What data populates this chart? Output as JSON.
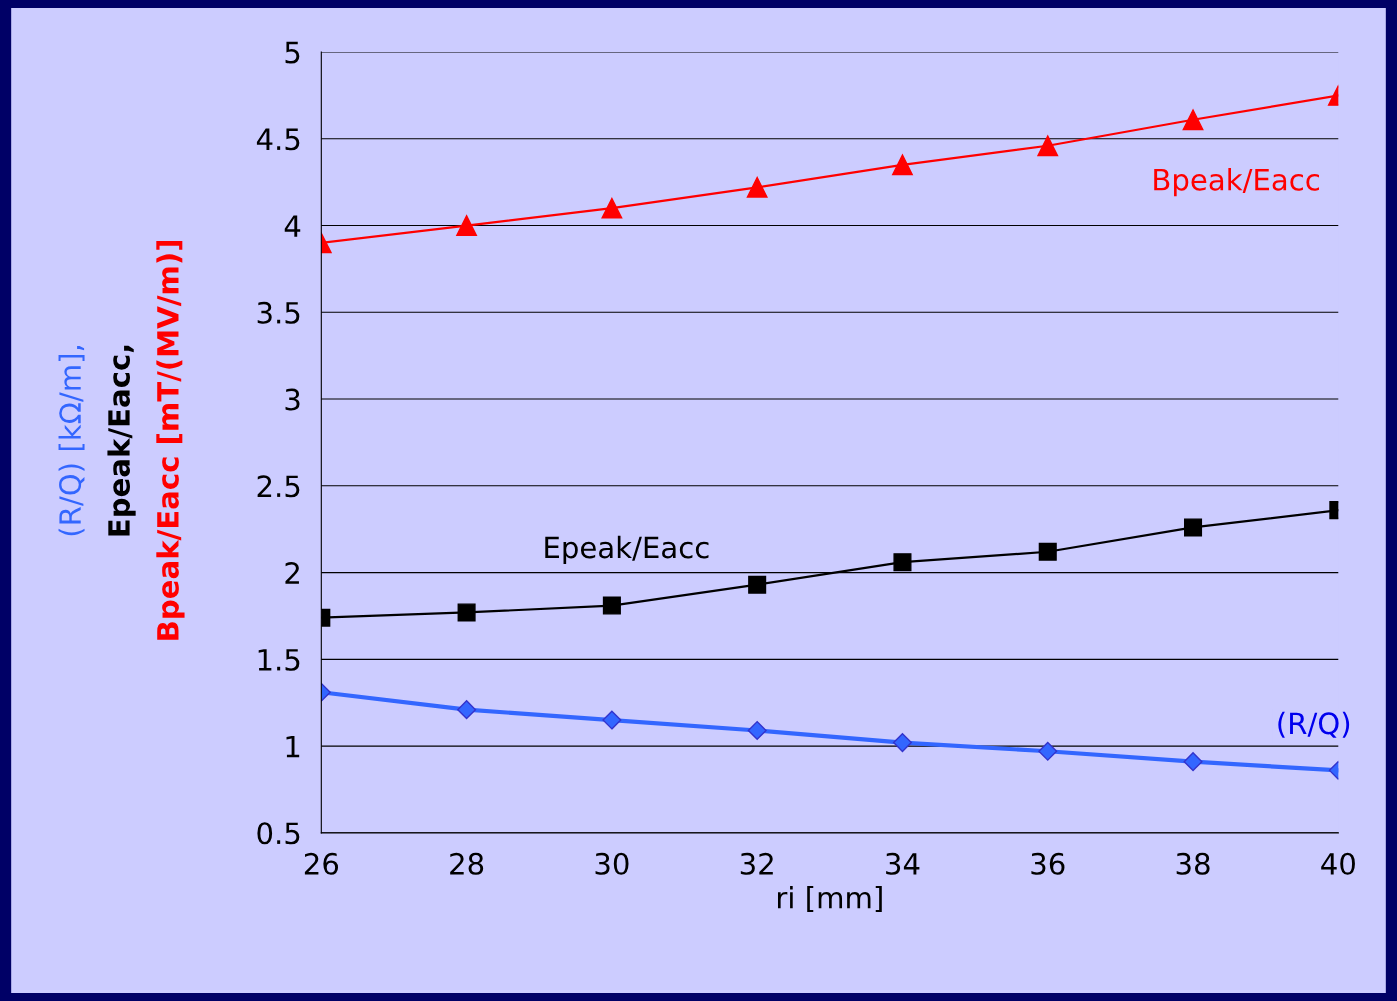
{
  "chart_data": {
    "type": "line",
    "xlabel": "ri [mm]",
    "ylabel": "(R/Q) [kΩ/m],\nEpeak/Eacc,\nBpeak/Eacc [mT/(MV/m)]",
    "x": [
      26,
      28,
      30,
      32,
      34,
      36,
      38,
      40
    ],
    "series": [
      {
        "name": "Bpeak/Eacc",
        "color": "#ff0000",
        "marker": "triangle",
        "values": [
          3.9,
          4.0,
          4.1,
          4.22,
          4.35,
          4.46,
          4.61,
          4.75
        ]
      },
      {
        "name": "Epeak/Eacc",
        "color": "#000000",
        "marker": "square",
        "values": [
          1.74,
          1.77,
          1.81,
          1.93,
          2.06,
          2.12,
          2.26,
          2.36
        ]
      },
      {
        "name": "(R/Q)",
        "color": "#3366ff",
        "marker": "diamond",
        "values": [
          1.31,
          1.21,
          1.15,
          1.09,
          1.02,
          0.97,
          0.91,
          0.86
        ]
      }
    ],
    "xlim": [
      26,
      40
    ],
    "xticks": [
      26,
      28,
      30,
      32,
      34,
      36,
      38,
      40
    ],
    "ylim": [
      0.5,
      5
    ],
    "yticks": [
      0.5,
      1,
      1.5,
      2,
      2.5,
      3,
      3.5,
      4,
      4.5,
      5
    ],
    "grid": "y",
    "legend": false,
    "line_style": "solid"
  }
}
